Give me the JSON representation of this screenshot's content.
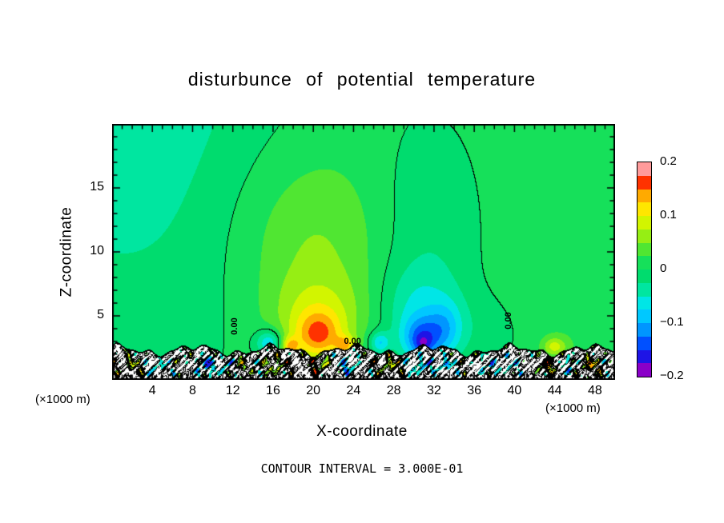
{
  "title": "disturbunce of potential temperature",
  "axes": {
    "x_label": "X-coordinate",
    "y_label": "Z-coordinate",
    "x_unit": "(×1000 m)",
    "y_unit": "(×1000 m)",
    "x_ticks": [
      4,
      8,
      12,
      16,
      20,
      24,
      28,
      32,
      36,
      40,
      44,
      48
    ],
    "y_ticks": [
      5,
      10,
      15
    ]
  },
  "colorbar": {
    "ticks": [
      {
        "label": "0.2",
        "v": 0.2
      },
      {
        "label": "0.1",
        "v": 0.1
      },
      {
        "label": "0",
        "v": 0
      },
      {
        "label": "−0.1",
        "v": -0.1
      },
      {
        "label": "−0.2",
        "v": -0.2
      }
    ]
  },
  "footer": "CONTOUR INTERVAL = 3.000E-01",
  "chart_data": {
    "type": "heatmap",
    "title": "disturbunce of potential temperature",
    "xlabel": "X-coordinate (×1000 m)",
    "ylabel": "Z-coordinate (×1000 m)",
    "x_range": [
      0,
      50
    ],
    "z_range": [
      0,
      20
    ],
    "value_range": [
      -0.2,
      0.2
    ],
    "contour_interval": 0.3,
    "zero_contour_label": "0.00",
    "palette_min": -0.2,
    "palette_step": 0.025,
    "palette": [
      "#8a00c8",
      "#1e14e6",
      "#0050ff",
      "#0096ff",
      "#00c8ff",
      "#00e6e6",
      "#00e6a0",
      "#00dc6e",
      "#16e05a",
      "#50e632",
      "#96ee14",
      "#d2f500",
      "#ffe600",
      "#ffaa00",
      "#ff3200",
      "#ff9b9b"
    ],
    "base": 0.012,
    "blobs": [
      {
        "x": 20.5,
        "z": 3.4,
        "sx": 1.7,
        "sz": 1.3,
        "a": 0.1
      },
      {
        "x": 20.5,
        "z": 5.0,
        "sx": 3.2,
        "sz": 2.2,
        "a": 0.055
      },
      {
        "x": 20.0,
        "z": 9.5,
        "sx": 5.0,
        "sz": 4.5,
        "a": 0.04
      },
      {
        "x": 19.0,
        "z": 15.0,
        "sx": 7.5,
        "sz": 5.5,
        "a": 0.018
      },
      {
        "x": 30.8,
        "z": 3.2,
        "sx": 1.4,
        "sz": 1.2,
        "a": -0.105
      },
      {
        "x": 30.9,
        "z": 2.8,
        "sx": 0.6,
        "sz": 0.5,
        "a": -0.045
      },
      {
        "x": 30.5,
        "z": 5.5,
        "sx": 2.6,
        "sz": 2.4,
        "a": -0.05
      },
      {
        "x": 33.2,
        "z": 4.0,
        "sx": 1.2,
        "sz": 1.5,
        "a": -0.06
      },
      {
        "x": 31.5,
        "z": 11.5,
        "sx": 4.2,
        "sz": 6.5,
        "a": -0.034
      },
      {
        "x": 2.0,
        "z": 22.0,
        "sx": 12.0,
        "sz": 14.0,
        "a": -0.055
      },
      {
        "x": 37.5,
        "z": 3.5,
        "sx": 2.8,
        "sz": 2.2,
        "a": -0.022
      },
      {
        "x": 46.0,
        "z": 10.0,
        "sx": 6.0,
        "sz": 9.0,
        "a": 0.012
      },
      {
        "x": 15.6,
        "z": 2.9,
        "sx": 0.9,
        "sz": 0.7,
        "a": -0.09
      },
      {
        "x": 26.6,
        "z": 2.9,
        "sx": 0.7,
        "sz": 0.6,
        "a": -0.08
      },
      {
        "x": 17.7,
        "z": 2.6,
        "sx": 0.6,
        "sz": 0.5,
        "a": 0.09
      },
      {
        "x": 23.2,
        "z": 2.7,
        "sx": 0.7,
        "sz": 0.5,
        "a": 0.08
      },
      {
        "x": 44.0,
        "z": 2.6,
        "sx": 0.8,
        "sz": 0.5,
        "a": 0.07
      }
    ],
    "strip": {
      "interface_base": 2.3,
      "waves": [
        [
          0.8,
          1.2,
          0.3
        ],
        [
          2.1,
          0.3,
          0.18
        ],
        [
          3.7,
          0.0,
          0.1
        ]
      ],
      "noise_terms": [
        [
          0.36,
          2.9,
          1.7,
          4.1,
          0.8
        ],
        [
          0.27,
          5.1,
          0.5,
          2.6,
          2.1
        ],
        [
          0.18,
          7.3,
          3.9,
          6.0,
          1.0
        ]
      ],
      "spots": [
        [
          9.5,
          -0.55
        ],
        [
          11.8,
          -0.5
        ],
        [
          12.6,
          0.55
        ],
        [
          16.2,
          0.45
        ],
        [
          20.6,
          0.5
        ],
        [
          23.4,
          -0.5
        ],
        [
          27.5,
          0.45
        ],
        [
          30.6,
          -0.5
        ],
        [
          33.0,
          -0.45
        ],
        [
          37.3,
          -0.38
        ],
        [
          39.5,
          -0.33
        ],
        [
          43.6,
          0.6
        ],
        [
          45.0,
          -0.5
        ],
        [
          47.6,
          0.55
        ],
        [
          4.5,
          -0.4
        ],
        [
          2.0,
          0.35
        ]
      ],
      "spot_sx": 0.75,
      "spot_sz": 0.5,
      "spot_z": 1.15,
      "line_step": 0.12
    },
    "zero_labels": [
      {
        "text": "0.00",
        "x": 12.2,
        "z": 4.2,
        "rot": -90
      },
      {
        "text": "0.00",
        "x": 23.9,
        "z": 3.0,
        "rot": 0
      },
      {
        "text": "0.00",
        "x": 39.4,
        "z": 4.6,
        "rot": -90
      }
    ]
  }
}
